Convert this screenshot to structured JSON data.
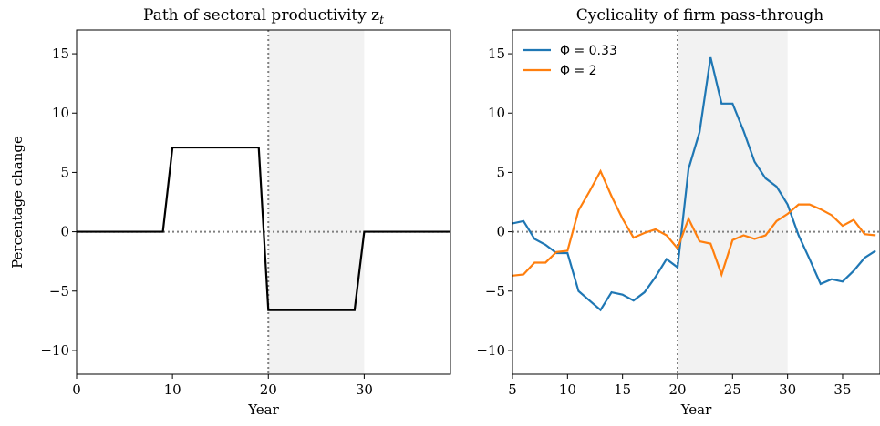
{
  "chart_data": [
    {
      "type": "line",
      "title": "Path of sectoral productivity z",
      "title_subscript": "t",
      "ylabel": "Percentage change",
      "xlabel": "Year",
      "x": [
        0,
        1,
        2,
        3,
        4,
        5,
        6,
        7,
        8,
        9,
        10,
        11,
        12,
        13,
        14,
        15,
        16,
        17,
        18,
        19,
        20,
        21,
        22,
        23,
        24,
        25,
        26,
        27,
        28,
        29,
        30,
        31,
        32,
        33,
        34,
        35,
        36,
        37,
        38,
        39
      ],
      "values": [
        0,
        0,
        0,
        0,
        0,
        0,
        0,
        0,
        0,
        0,
        7.1,
        7.1,
        7.1,
        7.1,
        7.1,
        7.1,
        7.1,
        7.1,
        7.1,
        7.1,
        -6.6,
        -6.6,
        -6.6,
        -6.6,
        -6.6,
        -6.6,
        -6.6,
        -6.6,
        -6.6,
        -6.6,
        0,
        0,
        0,
        0,
        0,
        0,
        0,
        0,
        0,
        0
      ],
      "color": "#000000",
      "xlim": [
        0,
        39
      ],
      "ylim": [
        -12,
        17
      ],
      "xticks": [
        0,
        10,
        20,
        30
      ],
      "yticks": [
        {
          "value": -10,
          "label": "−10"
        },
        {
          "value": -5,
          "label": "−5"
        },
        0,
        5,
        10,
        15
      ],
      "shaded_span": [
        20,
        30
      ],
      "vline": 20,
      "hline": 0
    },
    {
      "type": "line",
      "title": "Cyclicality of firm pass-through",
      "xlabel": "Year",
      "x": [
        5,
        6,
        7,
        8,
        9,
        10,
        11,
        12,
        13,
        14,
        15,
        16,
        17,
        18,
        19,
        20,
        21,
        22,
        23,
        24,
        25,
        26,
        27,
        28,
        29,
        30,
        31,
        32,
        33,
        34,
        35,
        36,
        37,
        38
      ],
      "series": [
        {
          "name": "Φ = 0.33",
          "color": "#1f77b4",
          "values": [
            0.7,
            0.9,
            -0.6,
            -1.1,
            -1.8,
            -1.8,
            -5.0,
            -5.8,
            -6.6,
            -5.1,
            -5.3,
            -5.8,
            -5.1,
            -3.8,
            -2.3,
            -3.0,
            5.3,
            8.4,
            14.7,
            10.8,
            10.8,
            8.5,
            5.9,
            4.5,
            3.8,
            2.3,
            -0.3,
            -2.3,
            -4.4,
            -4.0,
            -4.2,
            -3.3,
            -2.2,
            -1.6
          ]
        },
        {
          "name": "Φ = 2",
          "color": "#ff7f0e",
          "values": [
            -3.7,
            -3.6,
            -2.6,
            -2.6,
            -1.7,
            -1.6,
            1.8,
            3.4,
            5.1,
            3.0,
            1.1,
            -0.5,
            -0.1,
            0.2,
            -0.3,
            -1.4,
            1.1,
            -0.8,
            -1.0,
            -3.6,
            -0.7,
            -0.3,
            -0.6,
            -0.3,
            0.9,
            1.5,
            2.3,
            2.3,
            1.9,
            1.4,
            0.5,
            1.0,
            -0.2,
            -0.3
          ]
        }
      ],
      "legend": "upper left",
      "xlim": [
        5,
        38.4
      ],
      "ylim": [
        -12,
        17
      ],
      "xticks": [
        5,
        10,
        15,
        20,
        25,
        30,
        35
      ],
      "yticks": [
        {
          "value": -10,
          "label": "−10"
        },
        {
          "value": -5,
          "label": "−5"
        },
        0,
        5,
        10,
        15
      ],
      "shaded_span": [
        20,
        30
      ],
      "vline": 20,
      "hline": 0
    }
  ]
}
